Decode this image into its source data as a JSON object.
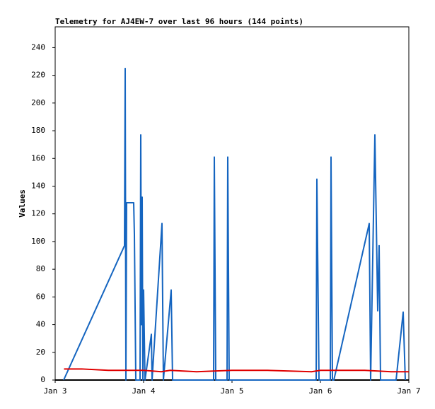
{
  "chart_data": {
    "type": "line",
    "title": "Telemetry for AJ4EW-7 over last 96 hours (144 points)",
    "y_label": "Values",
    "xlim": [
      3,
      7
    ],
    "xticks": [
      {
        "value": 3,
        "label": "Jan 3"
      },
      {
        "value": 4,
        "label": "Jan 4"
      },
      {
        "value": 5,
        "label": "Jan 5"
      },
      {
        "value": 6,
        "label": "Jan 6"
      },
      {
        "value": 7,
        "label": "Jan 7"
      }
    ],
    "ylim": [
      0,
      255
    ],
    "yticks": [
      0,
      20,
      40,
      60,
      80,
      100,
      120,
      140,
      160,
      180,
      200,
      220,
      240
    ],
    "grid": false,
    "series": [
      {
        "color": "#1565c0",
        "x": [
          3.096,
          3.784,
          3.792,
          3.8,
          3.808,
          3.888,
          3.896,
          3.912,
          3.96,
          3.968,
          3.976,
          3.984,
          3.992,
          4.0,
          4.016,
          4.088,
          4.096,
          4.208,
          4.224,
          4.312,
          4.328,
          4.792,
          4.8,
          4.816,
          4.944,
          4.952,
          4.968,
          5.952,
          5.96,
          5.984,
          6.112,
          6.12,
          6.136,
          6.152,
          6.552,
          6.568,
          6.616,
          6.648,
          6.664,
          6.68,
          6.856,
          6.936,
          6.96
        ],
        "values": [
          0,
          97,
          225,
          0,
          128,
          128,
          105,
          0,
          0,
          177,
          40,
          132,
          0,
          65,
          0,
          33,
          0,
          113,
          0,
          65,
          0,
          0,
          161,
          0,
          0,
          161,
          0,
          0,
          145,
          0,
          0,
          161,
          0,
          0,
          113,
          0,
          177,
          50,
          97,
          0,
          0,
          49,
          0
        ]
      },
      {
        "color": "#e00000",
        "x": [
          3.1,
          3.3,
          3.6,
          4.0,
          4.2,
          4.3,
          4.6,
          5.0,
          5.4,
          5.9,
          6.0,
          6.5,
          6.8,
          7.0
        ],
        "values": [
          8,
          8,
          7,
          7,
          6,
          7,
          6,
          7,
          7,
          6,
          7,
          7,
          6,
          6
        ]
      }
    ]
  }
}
